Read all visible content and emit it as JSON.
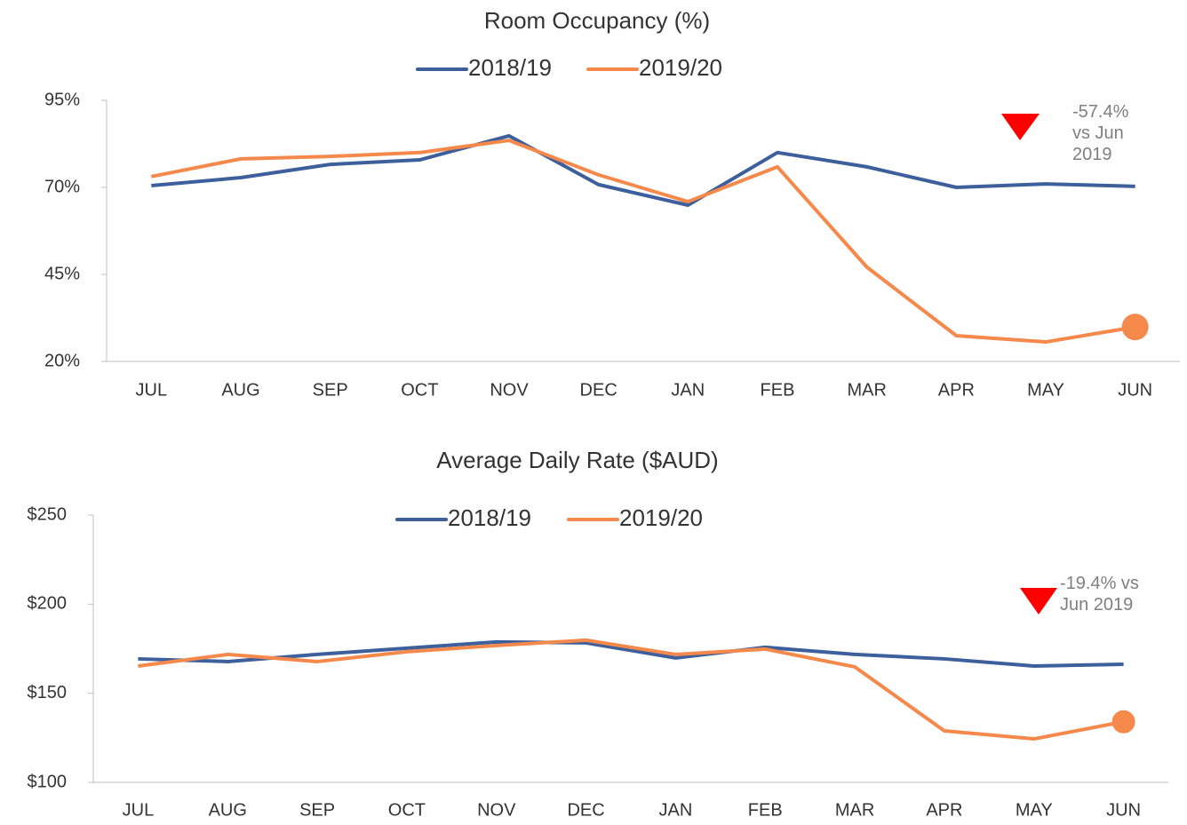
{
  "chart_data": [
    {
      "type": "line",
      "title": "Room Occupancy (%)",
      "categories": [
        "JUL",
        "AUG",
        "SEP",
        "OCT",
        "NOV",
        "DEC",
        "JAN",
        "FEB",
        "MAR",
        "APR",
        "MAY",
        "JUN"
      ],
      "series": [
        {
          "name": "2018/19",
          "color": "#3d5f9b",
          "values": [
            70.5,
            72.8,
            76.6,
            77.9,
            84.8,
            70.8,
            64.9,
            80,
            75.9,
            70,
            71,
            70.3
          ]
        },
        {
          "name": "2019/20",
          "color": "#f5894b",
          "values": [
            73.1,
            78.2,
            78.9,
            80,
            83.5,
            73.6,
            65.9,
            75.9,
            47.1,
            27.4,
            25.6,
            29.9
          ]
        }
      ],
      "ylim": [
        20,
        95
      ],
      "yticks": [
        {
          "value": 20,
          "label": "20%"
        },
        {
          "value": 45,
          "label": "45%"
        },
        {
          "value": 70,
          "label": "70%"
        },
        {
          "value": 95,
          "label": "95%"
        }
      ],
      "annotation": "-57.4% vs Jun 2019"
    },
    {
      "type": "line",
      "title": "Average Daily Rate ($AUD)",
      "categories": [
        "JUL",
        "AUG",
        "SEP",
        "OCT",
        "NOV",
        "DEC",
        "JAN",
        "FEB",
        "MAR",
        "APR",
        "MAY",
        "JUN"
      ],
      "series": [
        {
          "name": "2018/19",
          "color": "#3d5f9b",
          "values": [
            169.3,
            167.8,
            171.8,
            175.3,
            178.8,
            178.3,
            169.8,
            175.8,
            171.8,
            169.3,
            165.3,
            166.3
          ]
        },
        {
          "name": "2019/20",
          "color": "#f5894b",
          "values": [
            165.3,
            171.8,
            167.8,
            173.3,
            176.8,
            179.8,
            171.8,
            174.8,
            164.8,
            128.9,
            124.4,
            134
          ]
        }
      ],
      "ylim": [
        100,
        250
      ],
      "yticks": [
        {
          "value": 100,
          "label": "$100"
        },
        {
          "value": 150,
          "label": "$150"
        },
        {
          "value": 200,
          "label": "$200"
        },
        {
          "value": 250,
          "label": "$250"
        }
      ],
      "annotation": "-19.4% vs Jun 2019"
    }
  ]
}
